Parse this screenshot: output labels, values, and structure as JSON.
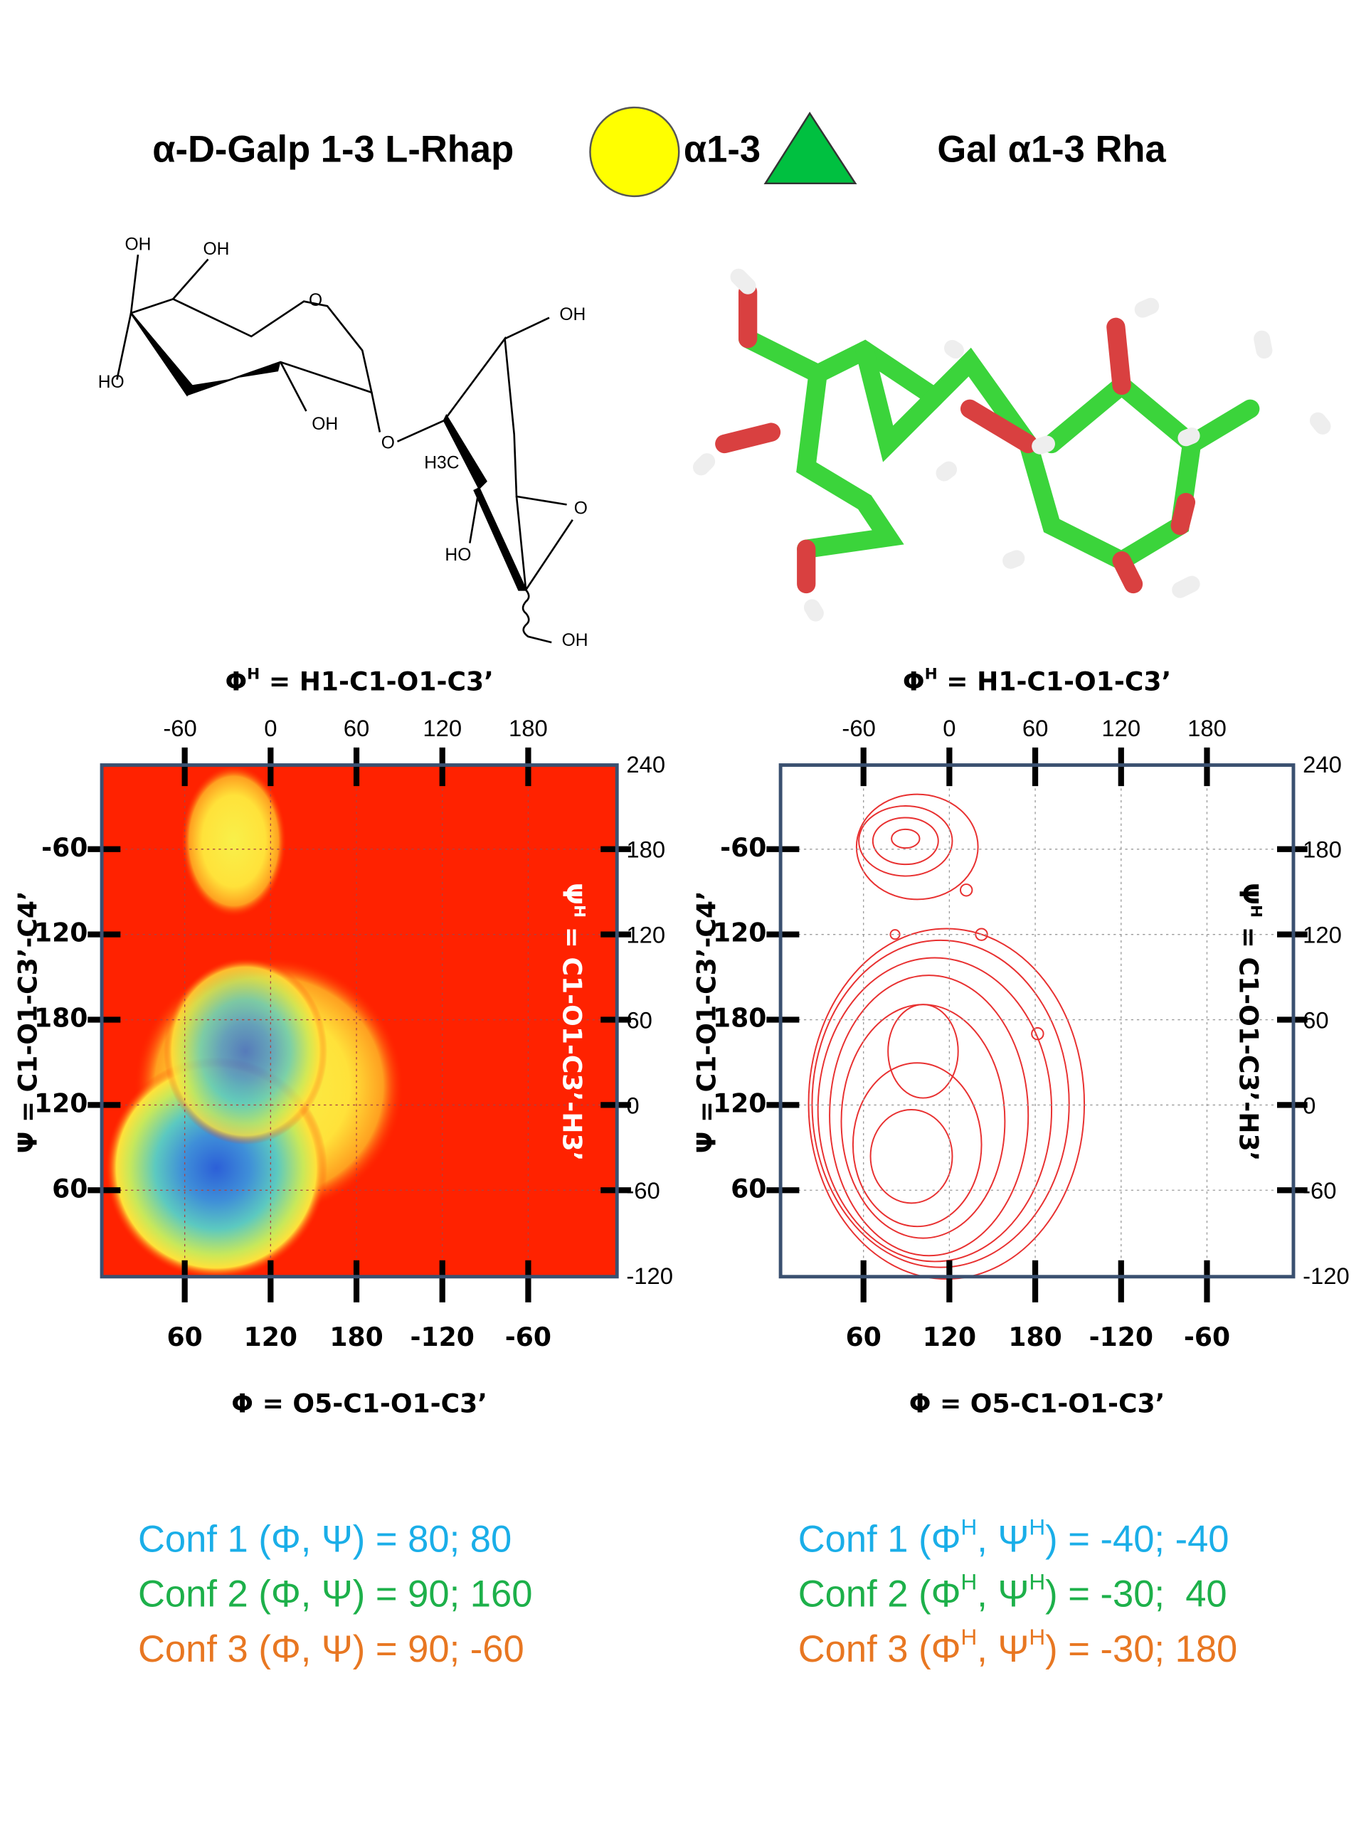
{
  "header": {
    "title_left": "α-D-Galp 1-3 L-Rhap",
    "linkage": "α1-3",
    "title_right": "Gal α1-3 Rha"
  },
  "structure": {
    "labels": [
      "OH",
      "OH",
      "O",
      "HO",
      "OH",
      "O",
      "OH",
      "H3C",
      "HO",
      "O",
      "OH"
    ]
  },
  "plots": [
    {
      "top_title": [
        {
          "text": "Φ"
        },
        {
          "text": "H",
          "sup": true
        },
        {
          "text": " = H1-C1-O1-C3’"
        }
      ],
      "top_ticks": [
        "-60",
        "0",
        "60",
        "120",
        "180"
      ],
      "left_title": "Ψ = C1-O1-C3’-C4’",
      "left_ticks": [
        "-60",
        "-120",
        "180",
        "120",
        "60"
      ],
      "right_title": [
        {
          "text": "Ψ"
        },
        {
          "text": "H",
          "sup": true
        },
        {
          "text": " = C1-O1-C3’-H3’"
        }
      ],
      "right_ticks": [
        "240",
        "180",
        "120",
        "60",
        "0",
        "-60",
        "-120"
      ],
      "bottom_ticks": [
        "60",
        "120",
        "180",
        "-120",
        "-60"
      ],
      "bottom_title": "Φ = O5-C1-O1-C3’"
    },
    {
      "top_title": [
        {
          "text": "Φ"
        },
        {
          "text": "H",
          "sup": true
        },
        {
          "text": " = H1-C1-O1-C3’"
        }
      ],
      "top_ticks": [
        "-60",
        "0",
        "60",
        "120",
        "180"
      ],
      "left_title": "Ψ = C1-O1-C3’-C4’",
      "left_ticks": [
        "-60",
        "-120",
        "180",
        "120",
        "60"
      ],
      "right_title": [
        {
          "text": "Ψ"
        },
        {
          "text": "H",
          "sup": true
        },
        {
          "text": " = C1-O1-C3’-H3’"
        }
      ],
      "right_ticks": [
        "240",
        "180",
        "120",
        "60",
        "0",
        "-60",
        "-120"
      ],
      "bottom_ticks": [
        "60",
        "120",
        "180",
        "-120",
        "-60"
      ],
      "bottom_title": "Φ = O5-C1-O1-C3’"
    }
  ],
  "conformations": {
    "left": [
      [
        {
          "text": "Conf 1 (Φ, Ψ) = 80; 80"
        }
      ],
      [
        {
          "text": "Conf 2 (Φ, Ψ) = 90; 160"
        }
      ],
      [
        {
          "text": "Conf 3 (Φ, Ψ) = 90; -60"
        }
      ]
    ],
    "right": [
      [
        {
          "text": "Conf 1 (Φ"
        },
        {
          "text": "H",
          "sup": true
        },
        {
          "text": ", Ψ"
        },
        {
          "text": "H",
          "sup": true
        },
        {
          "text": ") = -40; -40"
        }
      ],
      [
        {
          "text": "Conf 2 (Φ"
        },
        {
          "text": "H",
          "sup": true
        },
        {
          "text": ", Ψ"
        },
        {
          "text": "H",
          "sup": true
        },
        {
          "text": ") = -30;  40"
        }
      ],
      [
        {
          "text": "Conf 3 (Φ"
        },
        {
          "text": "H",
          "sup": true
        },
        {
          "text": ", Ψ"
        },
        {
          "text": "H",
          "sup": true
        },
        {
          "text": ") = -30; 180"
        }
      ]
    ]
  }
}
